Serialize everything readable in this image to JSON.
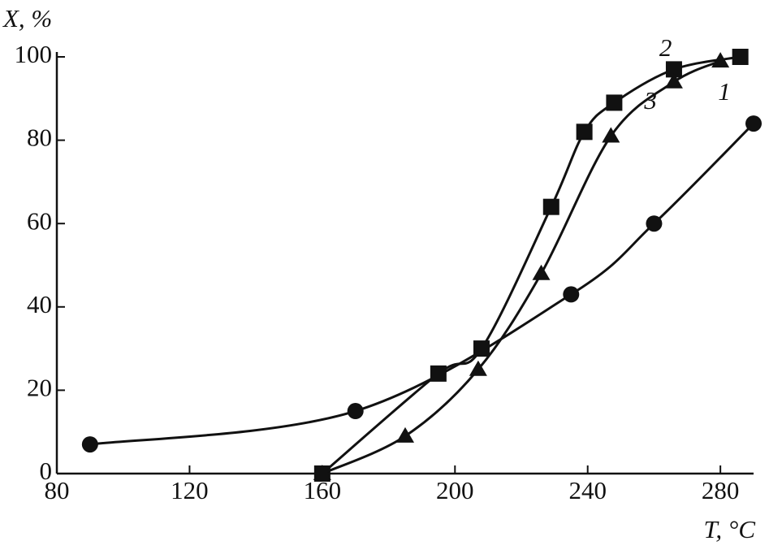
{
  "chart_data": {
    "type": "line",
    "y_label": "X, %",
    "x_label": "T, °C",
    "xlim": [
      80,
      290
    ],
    "ylim": [
      0,
      100
    ],
    "xticks": [
      80,
      120,
      160,
      200,
      240,
      280
    ],
    "yticks": [
      0,
      20,
      40,
      60,
      80,
      100
    ],
    "grid": false,
    "series": [
      {
        "name": "1",
        "color": "#111111",
        "marker": "circle",
        "x": [
          90,
          170,
          235,
          260,
          290
        ],
        "values": [
          7,
          15,
          43,
          60,
          84
        ]
      },
      {
        "name": "2",
        "color": "#111111",
        "marker": "square",
        "x": [
          160,
          195,
          208,
          229,
          239,
          248,
          266,
          286
        ],
        "values": [
          0,
          24,
          30,
          64,
          82,
          89,
          97,
          100
        ]
      },
      {
        "name": "3",
        "color": "#111111",
        "marker": "triangle",
        "x": [
          160,
          185,
          207,
          226,
          247,
          266,
          280
        ],
        "values": [
          0,
          9,
          25,
          48,
          81,
          94,
          99
        ]
      }
    ]
  }
}
